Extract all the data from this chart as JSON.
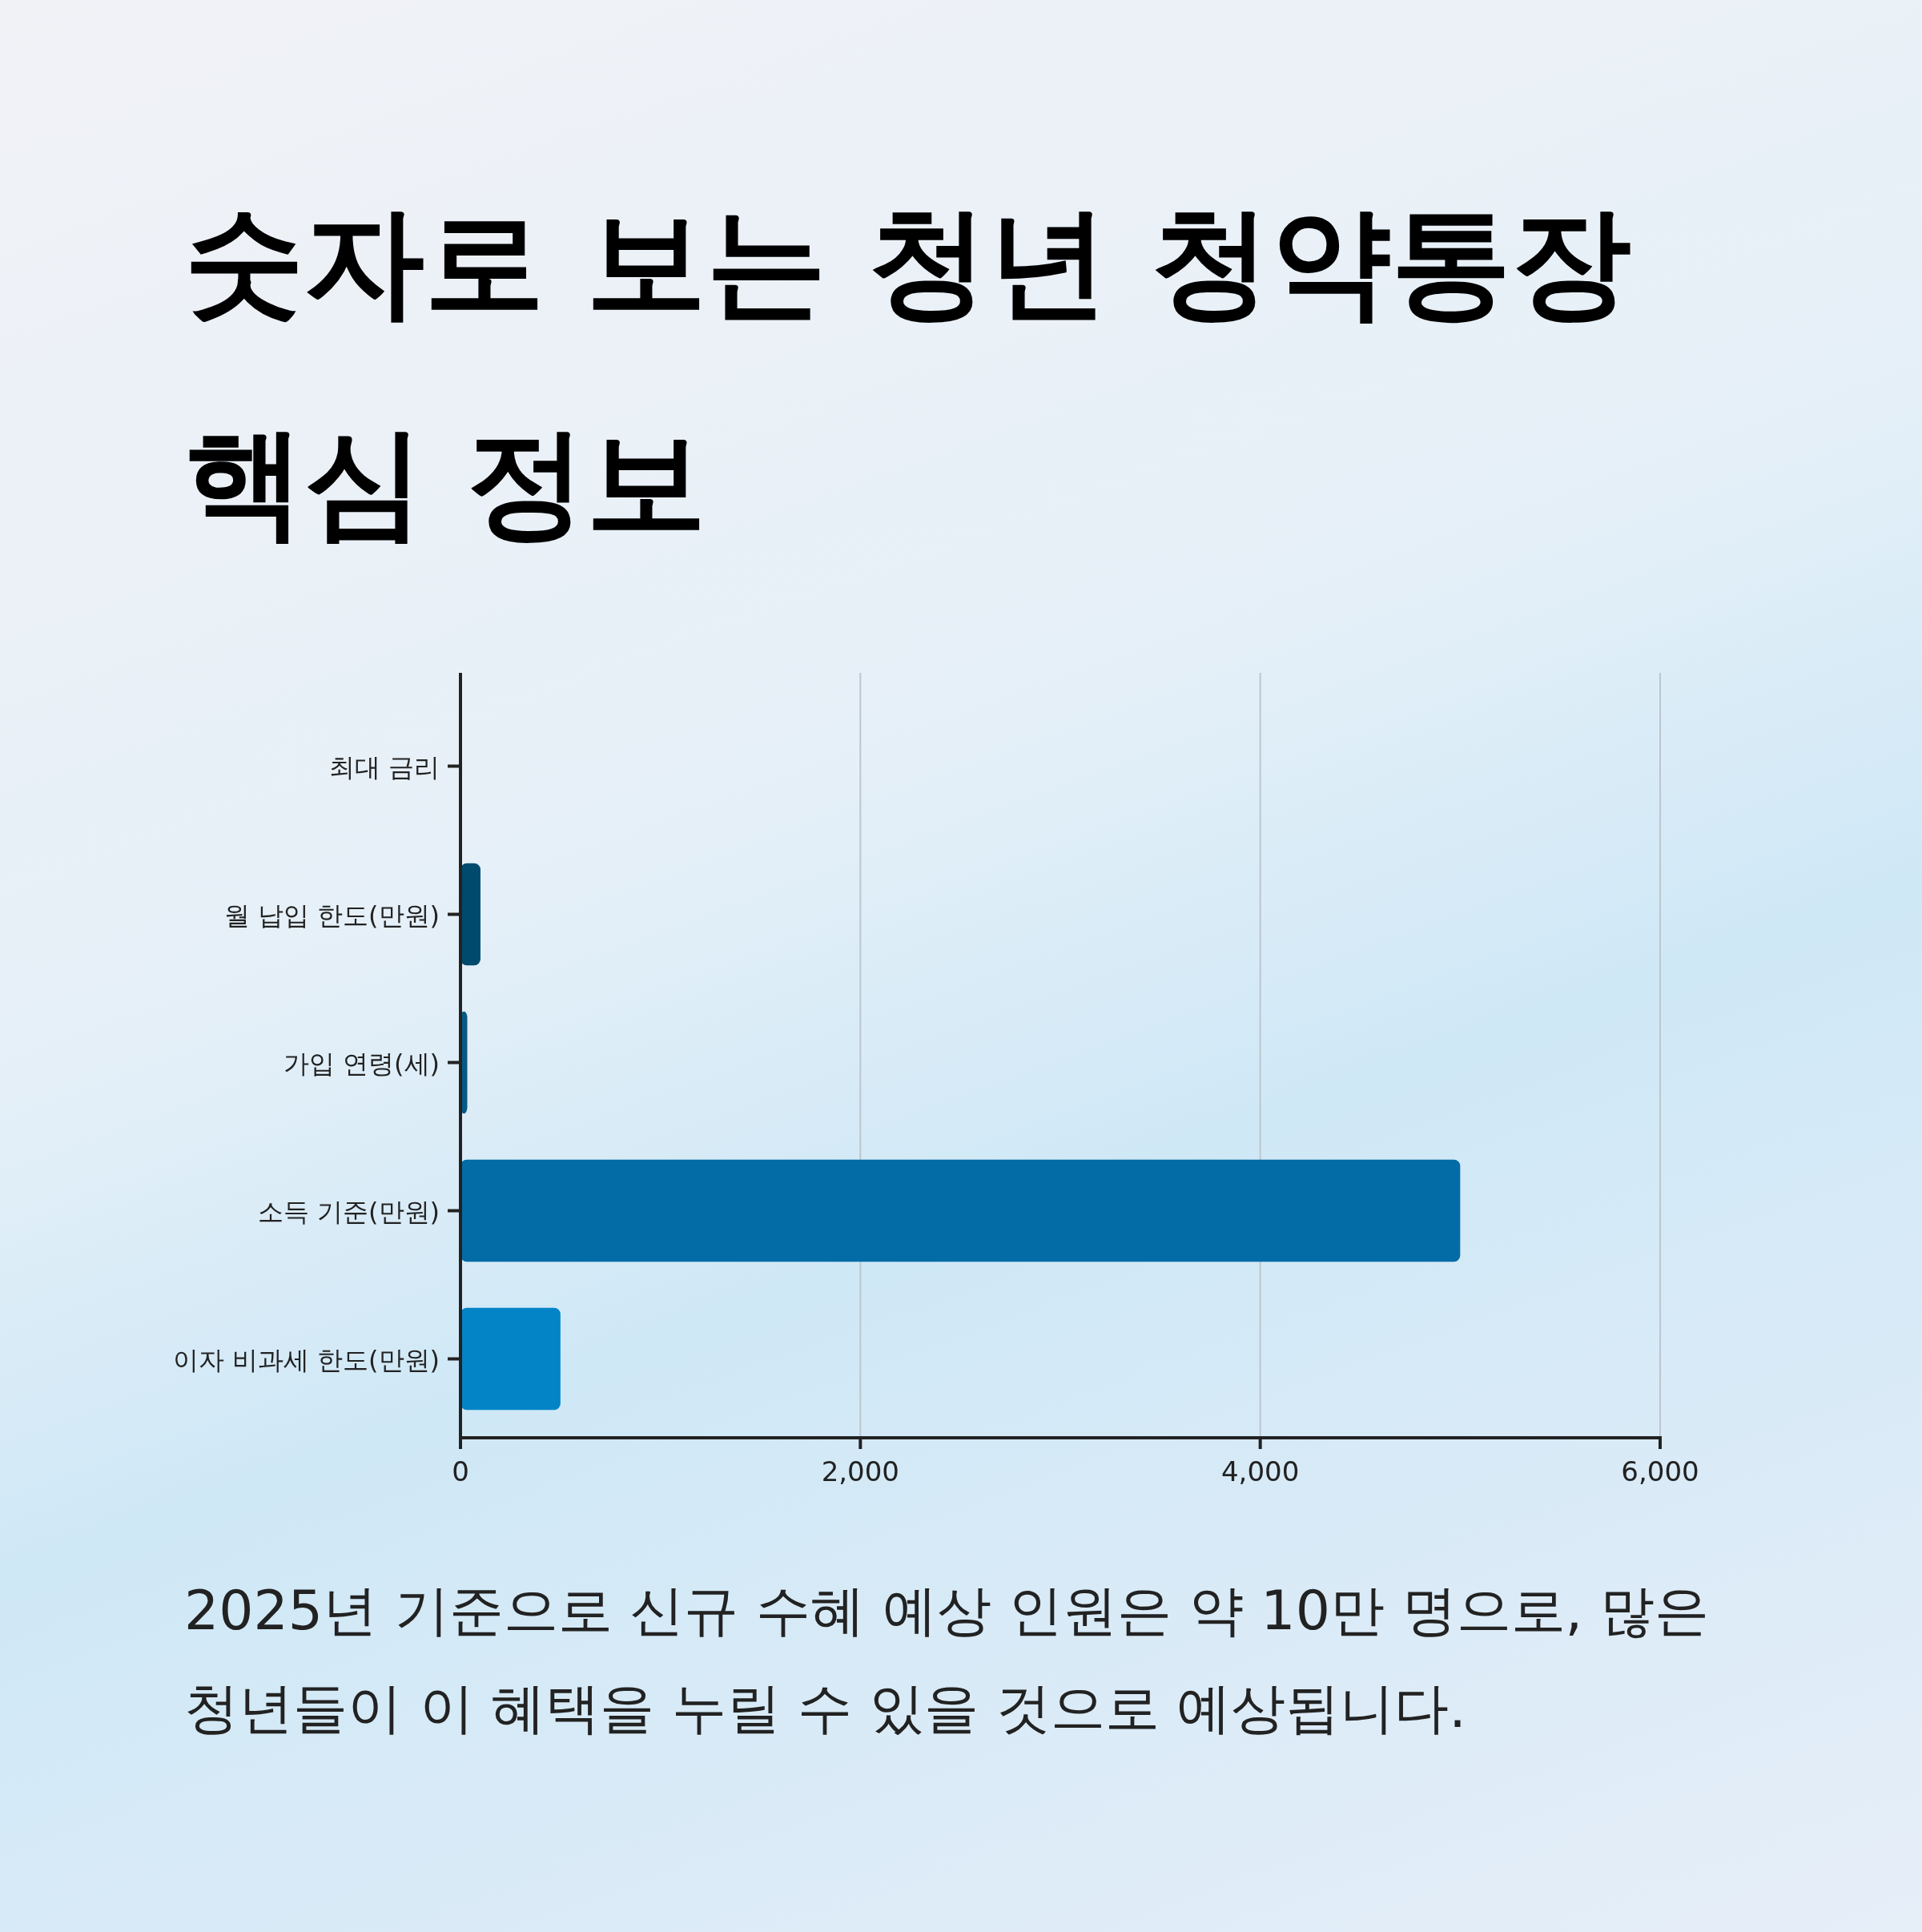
{
  "chart_data": {
    "type": "bar",
    "orientation": "horizontal",
    "title": "숫자로 보는 청년 청약통장 핵심 정보",
    "categories": [
      "최대 금리",
      "월 납입 한도(만원)",
      "가입 연령(세)",
      "소득 기준(만원)",
      "이자 비과세 한도(만원)"
    ],
    "values": [
      null,
      100,
      34,
      5000,
      500
    ],
    "colors": [
      null,
      "#004a6e",
      "#075985",
      "#036ca6",
      "#0284c7"
    ],
    "xlim": [
      0,
      6000
    ],
    "xticks": [
      {
        "value": 0,
        "label": "0"
      },
      {
        "value": 2000,
        "label": "2,000"
      },
      {
        "value": 4000,
        "label": "4,000"
      },
      {
        "value": 6000,
        "label": "6,000"
      }
    ],
    "grid": "x",
    "annotations": [
      "2025년 기준으로 신규 수혜 예상 인원은 약 10만 명으로, 많은 청년들이 이 혜택을 누릴 수 있을 것으로 예상됩니다."
    ]
  }
}
